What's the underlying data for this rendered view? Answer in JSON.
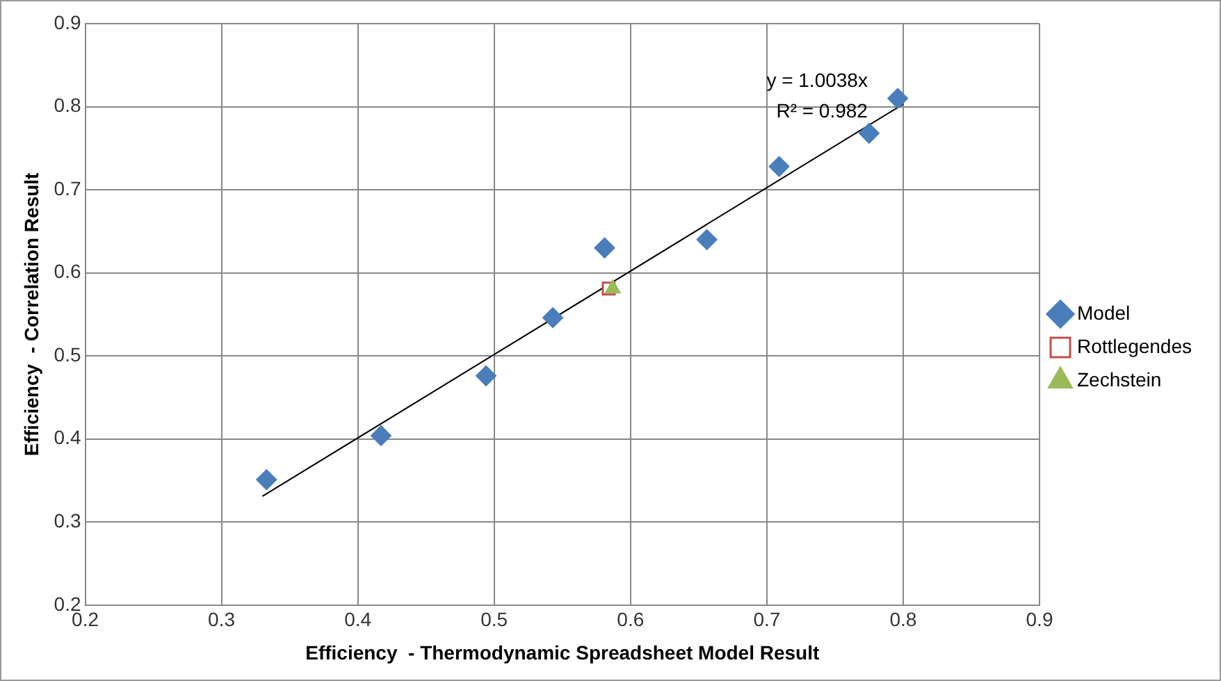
{
  "chart_data": {
    "type": "scatter",
    "xlabel": "Efficiency  - Thermodynamic Spreadsheet Model Result",
    "ylabel": "Efficiency  - Correlation Result",
    "xlim": [
      0.2,
      0.9
    ],
    "xticks": [
      0.2,
      0.3,
      0.4,
      0.5,
      0.6,
      0.7,
      0.8,
      0.9
    ],
    "ylim": [
      0.2,
      0.9
    ],
    "yticks": [
      0.2,
      0.3,
      0.4,
      0.5,
      0.6,
      0.7,
      0.8,
      0.9
    ],
    "grid": true,
    "legend": "right",
    "series": [
      {
        "name": "Model",
        "color": "#4a7ebb",
        "marker": "diamond",
        "x": [
          0.333,
          0.417,
          0.494,
          0.543,
          0.581,
          0.656,
          0.709,
          0.775,
          0.796
        ],
        "values": [
          0.351,
          0.404,
          0.476,
          0.546,
          0.63,
          0.64,
          0.728,
          0.768,
          0.81
        ]
      },
      {
        "name": "Rottlegendes",
        "color": "#c0504d",
        "marker": "square",
        "x": [
          0.584
        ],
        "values": [
          0.581
        ]
      },
      {
        "name": "Zechstein",
        "color": "#9bbb59",
        "marker": "triangle",
        "x": [
          0.587
        ],
        "values": [
          0.581
        ]
      },
      {
        "type": "line",
        "color": "#000000",
        "marker": "none",
        "x": [
          0.33,
          0.8
        ],
        "values": [
          0.331,
          0.803
        ]
      }
    ],
    "annotations": [
      "y = 1.0038x",
      "R² = 0.982"
    ]
  }
}
